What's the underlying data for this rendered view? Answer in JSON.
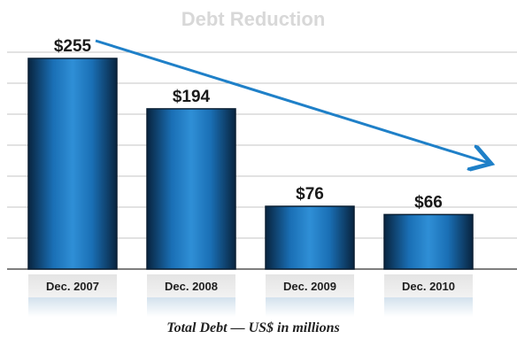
{
  "chart_data": {
    "type": "bar",
    "title": "Debt Reduction",
    "caption": "Total Debt — US$ in millions",
    "categories": [
      "Dec. 2007",
      "Dec. 2008",
      "Dec. 2009",
      "Dec. 2010"
    ],
    "values": [
      255,
      194,
      76,
      66
    ],
    "value_labels": [
      "$255",
      "$194",
      "$76",
      "$66"
    ],
    "ylim": [
      0,
      300
    ],
    "grid": "horizontal",
    "annotations": [
      "downward trend arrow"
    ]
  },
  "colors": {
    "bar_dark": "#08243f",
    "bar_mid": "#0d5a9c",
    "bar_light": "#2f8fd6",
    "arrow": "#1f80c8",
    "title": "#d8d8d8",
    "grid": "#c4c4c4",
    "label_box": "#e2e2e2"
  }
}
